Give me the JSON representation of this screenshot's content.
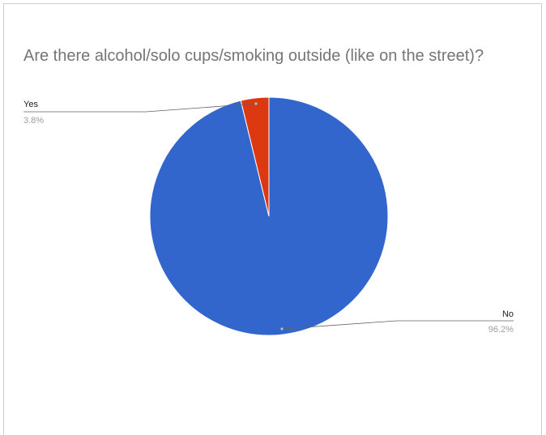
{
  "chart_data": {
    "type": "pie",
    "title": "Are there alcohol/solo cups/smoking outside (like on the street)?",
    "categories": [
      "No",
      "Yes"
    ],
    "values": [
      96.2,
      3.8
    ],
    "value_labels": [
      "96.2%",
      "3.8%"
    ],
    "colors": [
      "#3366cc",
      "#dc3912"
    ],
    "start_angle": "12 o'clock, slices clockwise",
    "legend": "none (labels outside with leader lines)"
  }
}
